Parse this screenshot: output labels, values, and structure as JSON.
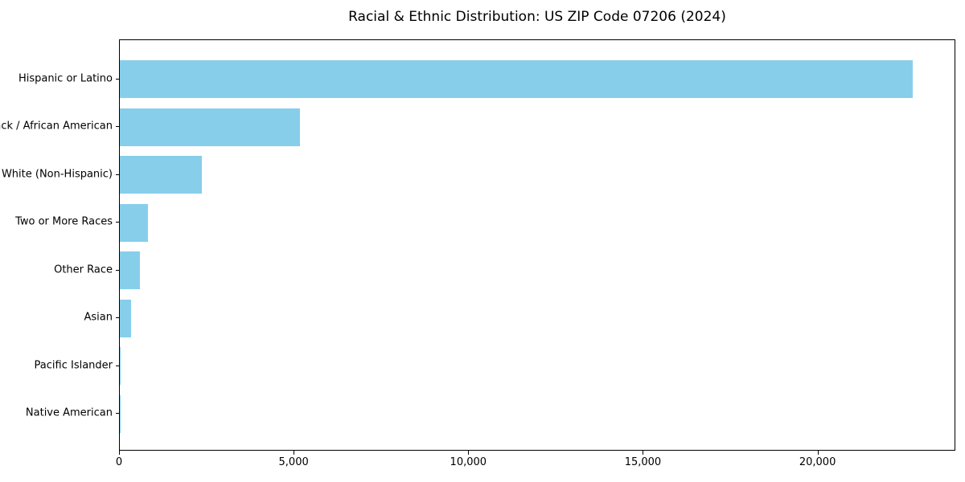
{
  "chart_data": {
    "type": "bar",
    "orientation": "horizontal",
    "title": "Racial & Ethnic Distribution: US ZIP Code 07206 (2024)",
    "categories": [
      "Hispanic or Latino",
      "Black / African American",
      "White (Non-Hispanic)",
      "Two or More Races",
      "Other Race",
      "Asian",
      "Pacific Islander",
      "Native American"
    ],
    "values": [
      22700,
      5150,
      2360,
      810,
      580,
      330,
      15,
      10
    ],
    "xlabel": "",
    "ylabel": "",
    "xlim": [
      0,
      23900
    ],
    "xticks": [
      0,
      5000,
      10000,
      15000,
      20000
    ],
    "xtick_labels": [
      "0",
      "5,000",
      "10,000",
      "15,000",
      "20,000"
    ],
    "bar_color": "#87CEEB",
    "text_color": "#000000",
    "frame_color": "#000000",
    "background_color": "#ffffff",
    "grid": false,
    "legend": false
  }
}
